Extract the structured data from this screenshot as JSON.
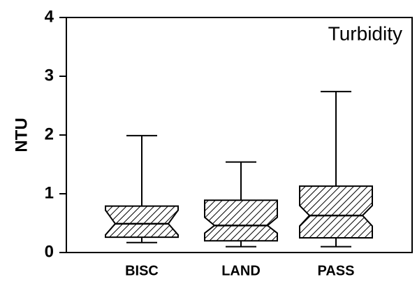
{
  "chart_data": {
    "type": "box",
    "annotation": "Turbidity",
    "ylabel": "NTU",
    "categories": [
      "BISC",
      "LAND",
      "PASS"
    ],
    "whisker_low": [
      0.17,
      0.1,
      0.1
    ],
    "q1": [
      0.26,
      0.2,
      0.25
    ],
    "notch_low": [
      0.3,
      0.33,
      0.45
    ],
    "median": [
      0.49,
      0.46,
      0.63
    ],
    "notch_high": [
      0.72,
      0.6,
      0.8
    ],
    "q3": [
      0.79,
      0.89,
      1.13
    ],
    "whisker_high": [
      1.99,
      1.54,
      2.74
    ],
    "color": "#000000",
    "ylim": [
      0,
      4
    ],
    "yticks": [
      0,
      1,
      2,
      3,
      4
    ]
  }
}
